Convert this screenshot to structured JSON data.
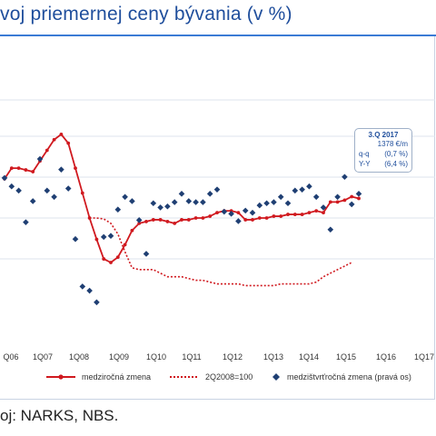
{
  "header": {
    "title": "voj priemernej ceny bývania  (v %)"
  },
  "source": "oj: NARKS, NBS.",
  "callout": {
    "title": "3.Q 2017",
    "price": "1378 €/m",
    "qq_label": "q-q",
    "qq_value": "(0,7 %)",
    "yy_label": "Y-Y",
    "yy_value": "(6,4 %)"
  },
  "legend": {
    "items": [
      {
        "label": "medziročná zmena",
        "style": "line-dot",
        "color": "#d0191f"
      },
      {
        "label": "2Q2008=100",
        "style": "dotted",
        "color": "#d0191f"
      },
      {
        "label": "medzištvrťročná zmena (pravá os)",
        "style": "diamond",
        "color": "#1f3f73"
      }
    ]
  },
  "colors": {
    "line": "#d0191f",
    "diamond": "#1f3f73",
    "grid": "#dde3ee",
    "axis_text": "#333333"
  },
  "chart_data": {
    "type": "line",
    "x_ticks": [
      "Q06",
      "1Q07",
      "1Q08",
      "1Q09",
      "1Q10",
      "1Q11",
      "1Q12",
      "1Q13",
      "1Q14",
      "1Q15",
      "1Q16",
      "1Q17"
    ],
    "grid": true,
    "legend_position": "bottom",
    "series": [
      {
        "name": "medziročná zmena",
        "style": "solid-with-markers",
        "values": [
          22,
          28,
          28,
          27,
          26,
          32,
          38,
          44,
          47,
          42,
          28,
          14,
          0,
          -12,
          -23,
          -25,
          -22,
          -15,
          -7,
          -3,
          -2,
          -1,
          -1,
          -2,
          -3,
          -1,
          -1,
          0,
          0,
          1,
          3,
          4,
          4,
          3,
          -1,
          -1,
          0,
          0,
          1,
          1,
          2,
          2,
          2,
          3,
          4,
          3,
          9,
          9,
          10,
          12,
          11
        ]
      },
      {
        "name": "2Q2008=100",
        "style": "dotted",
        "values": [
          0,
          0,
          -0.5,
          -3,
          -9,
          -19,
          -28,
          -29,
          -29,
          -29,
          -31,
          -33,
          -33,
          -33,
          -34,
          -35,
          -35,
          -36,
          -37,
          -37,
          -37,
          -37,
          -38,
          -38,
          -38,
          -38,
          -38,
          -37,
          -37,
          -37,
          -37,
          -37,
          -36,
          -33,
          -31,
          -29,
          -27,
          -25
        ]
      },
      {
        "name": "medzištvrťročná zmena (pravá os)",
        "style": "diamonds",
        "values": [
          38,
          30,
          26,
          -4,
          16,
          56,
          26,
          20,
          46,
          28,
          -20,
          -65,
          -69,
          -80,
          -18,
          -17,
          8,
          20,
          16,
          -2,
          -34,
          14,
          10,
          11,
          15,
          23,
          16,
          15,
          15,
          23,
          27,
          6,
          4,
          -3,
          7,
          5,
          12,
          14,
          15,
          20,
          14,
          26,
          27,
          30,
          20,
          10,
          -11,
          20,
          39,
          13,
          23
        ]
      }
    ]
  }
}
